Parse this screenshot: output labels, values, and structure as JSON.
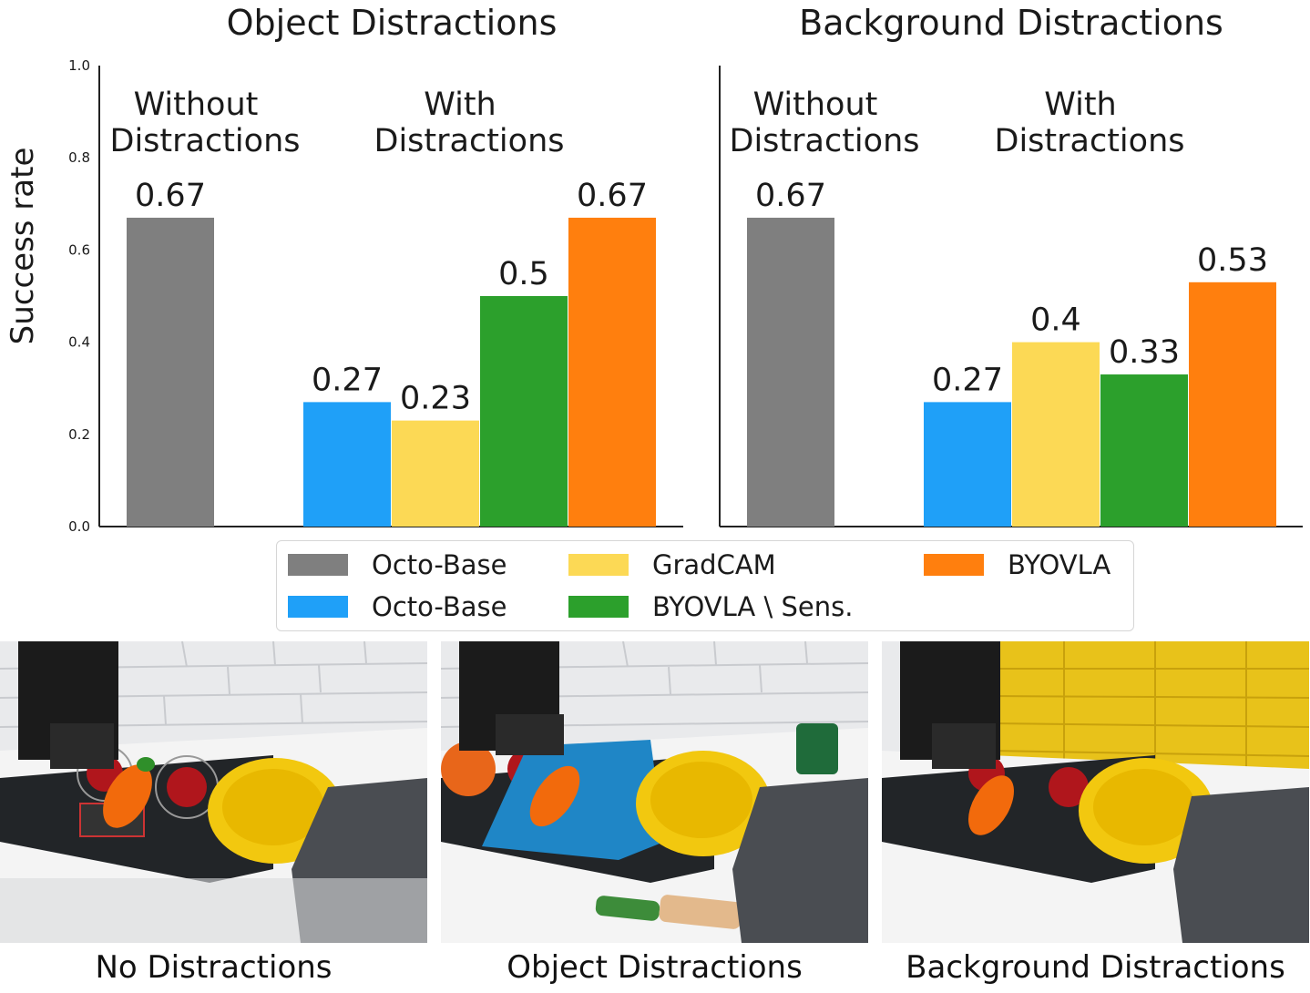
{
  "chart_data": [
    {
      "type": "bar",
      "title": "Object Distractions",
      "ylabel": "Success rate",
      "ylim": [
        0,
        1.0
      ],
      "yticks": [
        "0.0",
        "0.2",
        "0.4",
        "0.6",
        "0.8",
        "1.0"
      ],
      "groups": [
        {
          "label_line1": "Without",
          "label_line2": "Distractions",
          "bars": [
            {
              "series": "Octo-Base",
              "value": 0.67,
              "label": "0.67"
            }
          ]
        },
        {
          "label_line1": "With",
          "label_line2": "Distractions",
          "bars": [
            {
              "series": "Octo-Base",
              "value": 0.27,
              "label": "0.27"
            },
            {
              "series": "GradCAM",
              "value": 0.23,
              "label": "0.23"
            },
            {
              "series": "BYOVLA \\ Sens.",
              "value": 0.5,
              "label": "0.5"
            },
            {
              "series": "BYOVLA",
              "value": 0.67,
              "label": "0.67"
            }
          ]
        }
      ]
    },
    {
      "type": "bar",
      "title": "Background Distractions",
      "ylim": [
        0,
        1.0
      ],
      "groups": [
        {
          "label_line1": "Without",
          "label_line2": "Distractions",
          "bars": [
            {
              "series": "Octo-Base",
              "value": 0.67,
              "label": "0.67"
            }
          ]
        },
        {
          "label_line1": "With",
          "label_line2": "Distractions",
          "bars": [
            {
              "series": "Octo-Base",
              "value": 0.27,
              "label": "0.27"
            },
            {
              "series": "GradCAM",
              "value": 0.4,
              "label": "0.4"
            },
            {
              "series": "BYOVLA \\ Sens.",
              "value": 0.33,
              "label": "0.33"
            },
            {
              "series": "BYOVLA",
              "value": 0.53,
              "label": "0.53"
            }
          ]
        }
      ]
    }
  ],
  "colors": {
    "octo_base_no_distraction": "#7f7f7f",
    "octo_base": "#1fa0f8",
    "gradcam": "#fcd955",
    "byovla_sens": "#2ca02c",
    "byovla": "#ff7f0e"
  },
  "legend": [
    {
      "label": "Octo-Base",
      "color": "#7f7f7f"
    },
    {
      "label": "GradCAM",
      "color": "#fcd955"
    },
    {
      "label": "BYOVLA",
      "color": "#ff7f0e"
    },
    {
      "label": "Octo-Base",
      "color": "#1fa0f8"
    },
    {
      "label": "BYOVLA \\ Sens.",
      "color": "#2ca02c"
    }
  ],
  "photos": [
    {
      "caption": "No Distractions"
    },
    {
      "caption": "Object Distractions"
    },
    {
      "caption": "Background Distractions"
    }
  ]
}
